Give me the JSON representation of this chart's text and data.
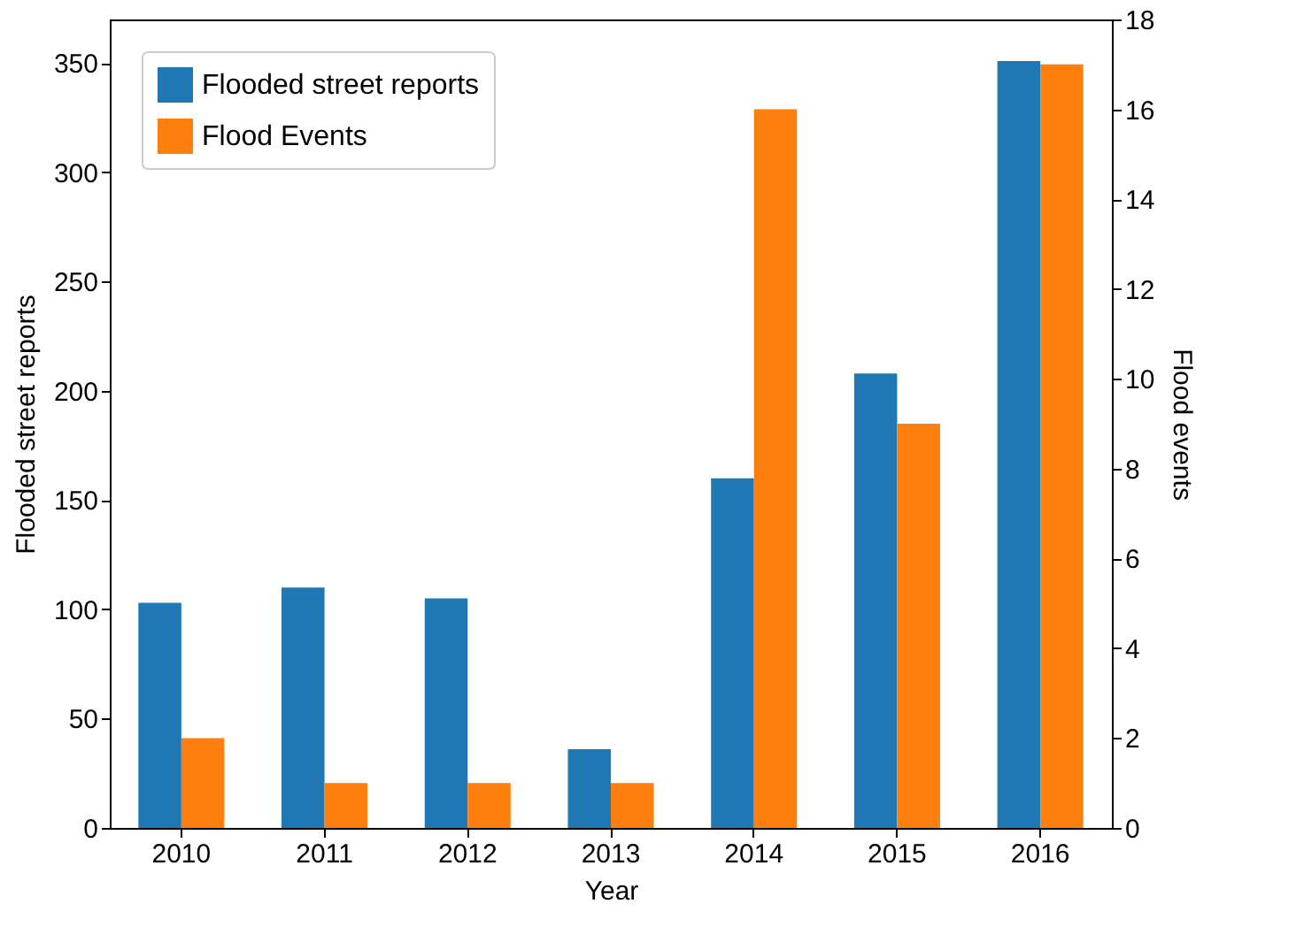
{
  "chart_data": {
    "type": "bar",
    "xlabel": "Year",
    "ylabel": "Flooded street reports",
    "y2label": "Flood events",
    "categories": [
      "2010",
      "2011",
      "2012",
      "2013",
      "2014",
      "2015",
      "2016"
    ],
    "series": [
      {
        "name": "Flooded street reports",
        "color": "#1f77b4",
        "values": [
          103,
          110,
          105,
          36,
          160,
          208,
          351
        ]
      },
      {
        "name": "Flood Events",
        "color": "#ff7f0e",
        "axis": "y2",
        "values": [
          2,
          1,
          1,
          1,
          16,
          9,
          17
        ]
      }
    ],
    "ylim": [
      0,
      370
    ],
    "yticks": [
      0,
      50,
      100,
      150,
      200,
      250,
      300,
      350
    ],
    "y2lim": [
      0,
      18
    ],
    "y2ticks": [
      0,
      2,
      4,
      6,
      8,
      10,
      12,
      14,
      16,
      18
    ],
    "legend": "top left",
    "grid": false
  }
}
